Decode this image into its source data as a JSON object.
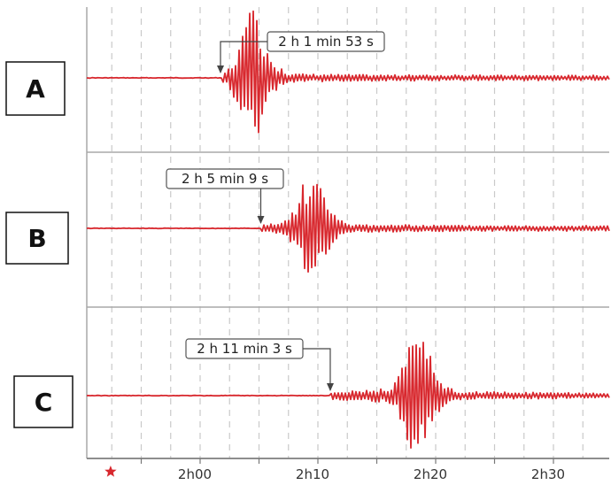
{
  "colors": {
    "trace": "#d8282e",
    "grid": "#c9c9c9",
    "frame": "#a8a8a8",
    "star": "#d8282e"
  },
  "epicenter_marker": {
    "icon": "star-icon",
    "time_min": -7
  },
  "x_axis": {
    "ticks": [
      "2h00",
      "2h10",
      "2h20",
      "2h30"
    ],
    "tick_minutes": [
      0,
      10,
      20,
      30
    ],
    "range_min": [
      -10,
      35
    ]
  },
  "stations": [
    {
      "label": "A",
      "arrival_text": "2 h 1 min 53 s",
      "arrival_min": 1.88,
      "peak_min": 4.5,
      "amplitude": 1.0
    },
    {
      "label": "B",
      "arrival_text": "2 h 5 min 9 s",
      "arrival_min": 5.15,
      "peak_min": 9.5,
      "amplitude": 0.85
    },
    {
      "label": "C",
      "arrival_text": "2 h 11 min 3 s",
      "arrival_min": 11.05,
      "peak_min": 18.5,
      "amplitude": 0.95
    }
  ]
}
